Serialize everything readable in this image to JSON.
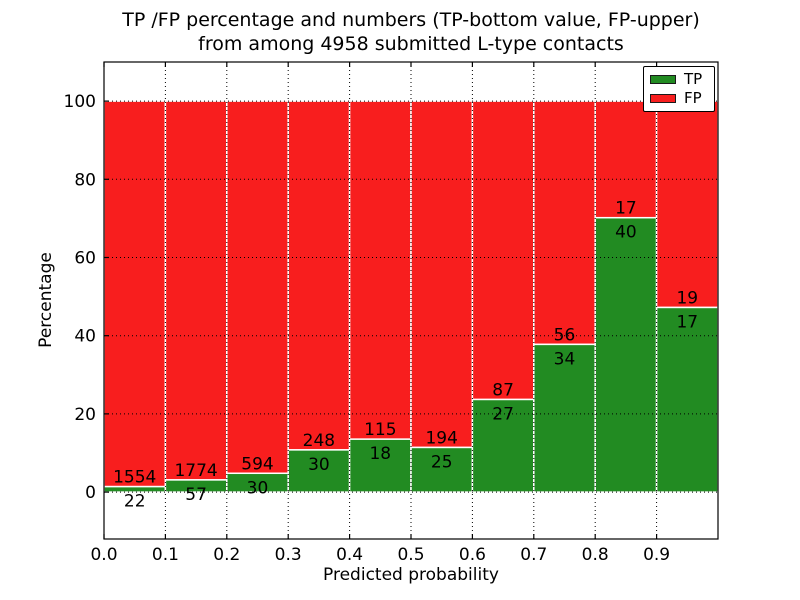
{
  "title": {
    "line1": "TP /FP percentage and numbers (TP-bottom value, FP-upper)",
    "line2": "from among 4958 submitted L-type contacts"
  },
  "axes": {
    "xlabel": "Predicted probability",
    "ylabel": "Percentage",
    "x_tick_labels": [
      "0.0",
      "0.1",
      "0.2",
      "0.3",
      "0.4",
      "0.5",
      "0.6",
      "0.7",
      "0.8",
      "0.9"
    ],
    "y_tick_labels": [
      "0",
      "20",
      "40",
      "60",
      "80",
      "100"
    ]
  },
  "legend": {
    "position": "upper right",
    "items": [
      {
        "label": "TP",
        "color": "#228b22"
      },
      {
        "label": "FP",
        "color": "#f81e1e"
      }
    ]
  },
  "colors": {
    "tp_green": "#228b22",
    "fp_red": "#f81e1e",
    "bar_edge": "#ffffff",
    "grid": "#000000",
    "text": "#000000",
    "background": "#ffffff"
  },
  "chart_data": {
    "type": "bar",
    "subtype": "stacked-percentage-histogram",
    "title": "TP /FP percentage and numbers (TP-bottom value, FP-upper) from among 4958 submitted L-type contacts",
    "xlabel": "Predicted probability",
    "ylabel": "Percentage",
    "total_contacts": 4958,
    "bin_edges": [
      0.0,
      0.1,
      0.2,
      0.3,
      0.4,
      0.5,
      0.6,
      0.7,
      0.8,
      0.9,
      1.0
    ],
    "series": [
      {
        "name": "TP",
        "color": "#228b22",
        "counts": [
          22,
          57,
          30,
          30,
          18,
          25,
          27,
          34,
          40,
          17
        ]
      },
      {
        "name": "FP",
        "color": "#f81e1e",
        "counts": [
          1554,
          1774,
          594,
          248,
          115,
          194,
          87,
          56,
          17,
          19
        ]
      }
    ],
    "tp_percent": [
      1.4,
      3.11,
      4.81,
      10.79,
      13.53,
      11.42,
      23.68,
      37.78,
      70.18,
      47.22
    ],
    "fp_percent": [
      98.6,
      96.89,
      95.19,
      89.21,
      86.47,
      88.58,
      76.32,
      62.22,
      29.82,
      52.78
    ],
    "x_ticks": [
      0.0,
      0.1,
      0.2,
      0.3,
      0.4,
      0.5,
      0.6,
      0.7,
      0.8,
      0.9
    ],
    "y_ticks": [
      0,
      20,
      40,
      60,
      80,
      100
    ],
    "xlim": [
      0.0,
      1.0
    ],
    "ylim": [
      -12,
      110
    ],
    "grid": "dotted",
    "legend_position": "upper right"
  }
}
